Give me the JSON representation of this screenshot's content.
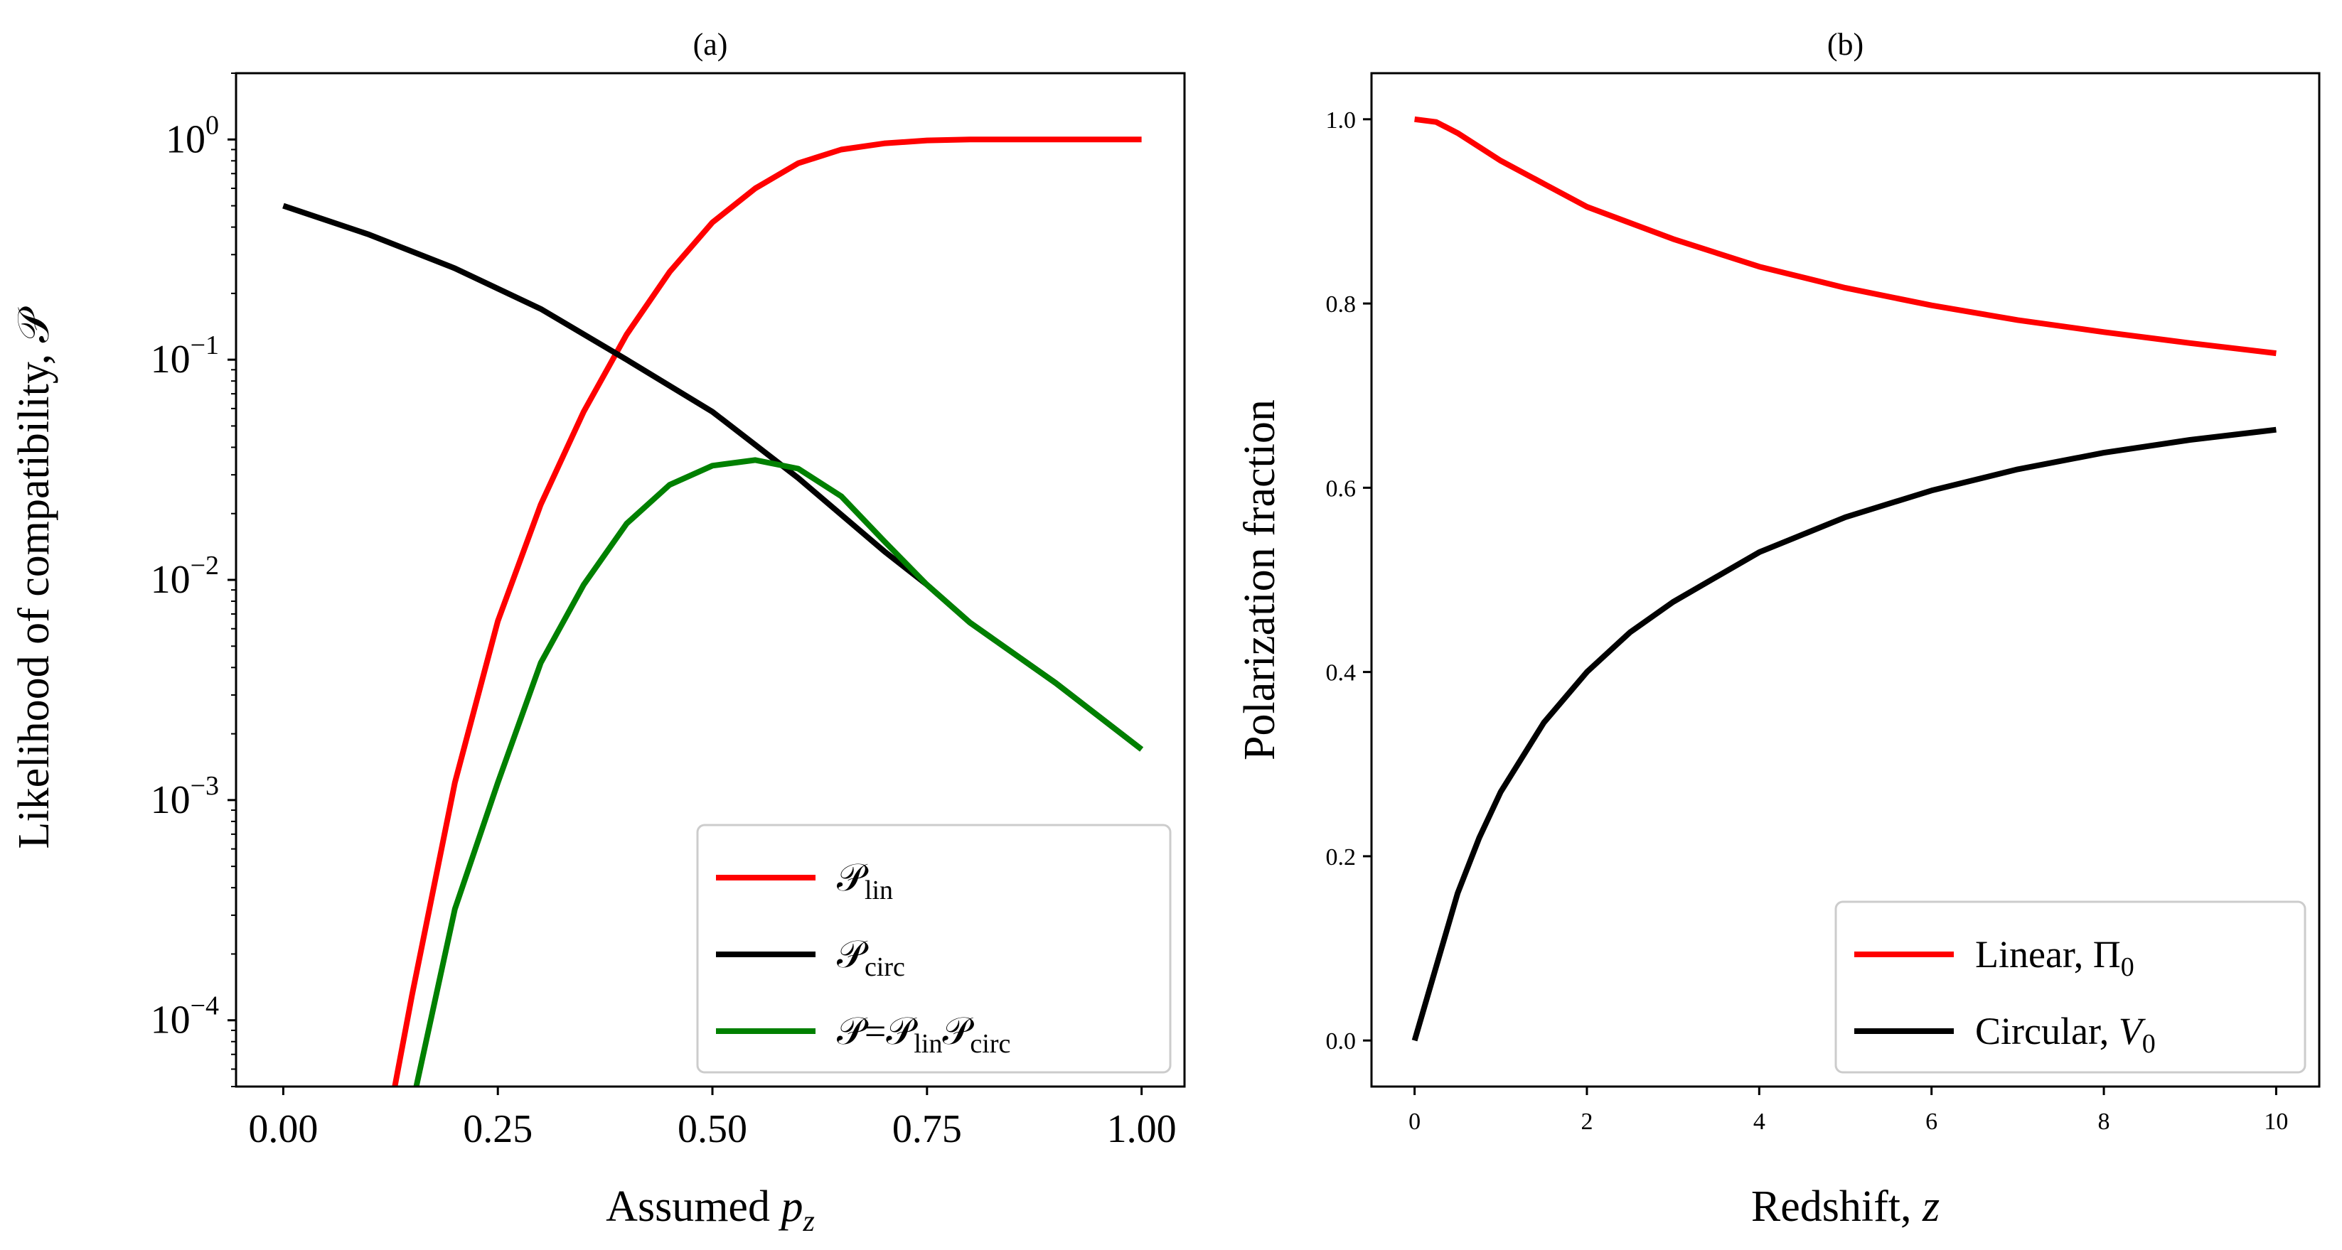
{
  "chart_data": [
    {
      "type": "line",
      "title": "(a)",
      "xlabel": "Assumed p_z",
      "xlabel_text": "Assumed ",
      "xlabel_var": "p",
      "xlabel_sub": "z",
      "ylabel": "Likelihood of compatibility, 𝒫",
      "yscale": "log",
      "xlim": [
        -0.055,
        1.05
      ],
      "ylim": [
        5e-05,
        2.0
      ],
      "xticks": [
        0.0,
        0.25,
        0.5,
        0.75,
        1.0
      ],
      "xtick_labels": [
        "0.00",
        "0.25",
        "0.50",
        "0.75",
        "1.00"
      ],
      "yticks": [
        1,
        0.1,
        0.01,
        0.001,
        0.0001
      ],
      "ytick_labels": [
        {
          "base": "10",
          "exp": "0"
        },
        {
          "base": "10",
          "exp": "−1"
        },
        {
          "base": "10",
          "exp": "−2"
        },
        {
          "base": "10",
          "exp": "−3"
        },
        {
          "base": "10",
          "exp": "−4"
        }
      ],
      "legend_position": "lower-right",
      "series": [
        {
          "name": "𝒫_lin",
          "legend": {
            "main": "𝒫",
            "sub": "lin"
          },
          "color": "#ff0000",
          "x": [
            0.13,
            0.15,
            0.2,
            0.25,
            0.3,
            0.35,
            0.4,
            0.45,
            0.5,
            0.55,
            0.6,
            0.65,
            0.7,
            0.75,
            0.8,
            0.85,
            0.9,
            1.0
          ],
          "y": [
            5e-05,
            0.00013,
            0.0012,
            0.0065,
            0.022,
            0.058,
            0.13,
            0.25,
            0.42,
            0.6,
            0.78,
            0.9,
            0.96,
            0.99,
            1.0,
            1.0,
            1.0,
            1.0
          ]
        },
        {
          "name": "𝒫_circ",
          "legend": {
            "main": "𝒫",
            "sub": "circ"
          },
          "color": "#000000",
          "x": [
            0.0,
            0.1,
            0.2,
            0.3,
            0.4,
            0.5,
            0.55,
            0.6,
            0.7,
            0.75,
            0.8,
            0.9,
            1.0
          ],
          "y": [
            0.5,
            0.37,
            0.26,
            0.17,
            0.1,
            0.058,
            0.041,
            0.029,
            0.0135,
            0.0095,
            0.0064,
            0.0034,
            0.0017
          ]
        },
        {
          "name": "𝒫 = 𝒫_lin 𝒫_circ",
          "legend": {
            "main": "𝒫=𝒫",
            "sub": "lin",
            "main2": "𝒫",
            "sub2": "circ"
          },
          "color": "#008000",
          "x": [
            0.155,
            0.2,
            0.25,
            0.3,
            0.35,
            0.4,
            0.45,
            0.5,
            0.55,
            0.6,
            0.65,
            0.7,
            0.75,
            0.8,
            0.9,
            1.0
          ],
          "y": [
            5e-05,
            0.00032,
            0.0012,
            0.0042,
            0.0095,
            0.018,
            0.027,
            0.033,
            0.035,
            0.032,
            0.024,
            0.015,
            0.0095,
            0.0064,
            0.0034,
            0.0017
          ]
        }
      ]
    },
    {
      "type": "line",
      "title": "(b)",
      "xlabel": "Redshift, z",
      "xlabel_text": "Redshift, ",
      "xlabel_var": "z",
      "ylabel": "Polarization fraction",
      "xlim": [
        -0.5,
        10.5
      ],
      "ylim": [
        -0.05,
        1.05
      ],
      "xticks": [
        0,
        2,
        4,
        6,
        8,
        10
      ],
      "xtick_labels": [
        "0",
        "2",
        "4",
        "6",
        "8",
        "10"
      ],
      "yticks": [
        0.0,
        0.2,
        0.4,
        0.6,
        0.8,
        1.0
      ],
      "ytick_labels": [
        "0.0",
        "0.2",
        "0.4",
        "0.6",
        "0.8",
        "1.0"
      ],
      "legend_position": "lower-right",
      "series": [
        {
          "name": "Linear, Π₀",
          "legend": {
            "main": "Linear, Π",
            "sub": "0"
          },
          "color": "#ff0000",
          "x": [
            0,
            0.25,
            0.5,
            0.75,
            1,
            1.5,
            2,
            3,
            4,
            5,
            6,
            7,
            8,
            9,
            10
          ],
          "y": [
            1.0,
            0.997,
            0.985,
            0.97,
            0.955,
            0.93,
            0.905,
            0.87,
            0.84,
            0.817,
            0.798,
            0.782,
            0.769,
            0.757,
            0.746
          ]
        },
        {
          "name": "Circular, V₀",
          "legend": {
            "main": "Circular, ",
            "italic": "V",
            "sub": "0"
          },
          "color": "#000000",
          "x": [
            0,
            0.25,
            0.5,
            0.75,
            1,
            1.5,
            2,
            2.5,
            3,
            4,
            5,
            6,
            7,
            8,
            9,
            10
          ],
          "y": [
            0.0,
            0.08,
            0.16,
            0.22,
            0.27,
            0.345,
            0.4,
            0.443,
            0.476,
            0.53,
            0.568,
            0.597,
            0.62,
            0.638,
            0.652,
            0.663
          ]
        }
      ]
    }
  ]
}
